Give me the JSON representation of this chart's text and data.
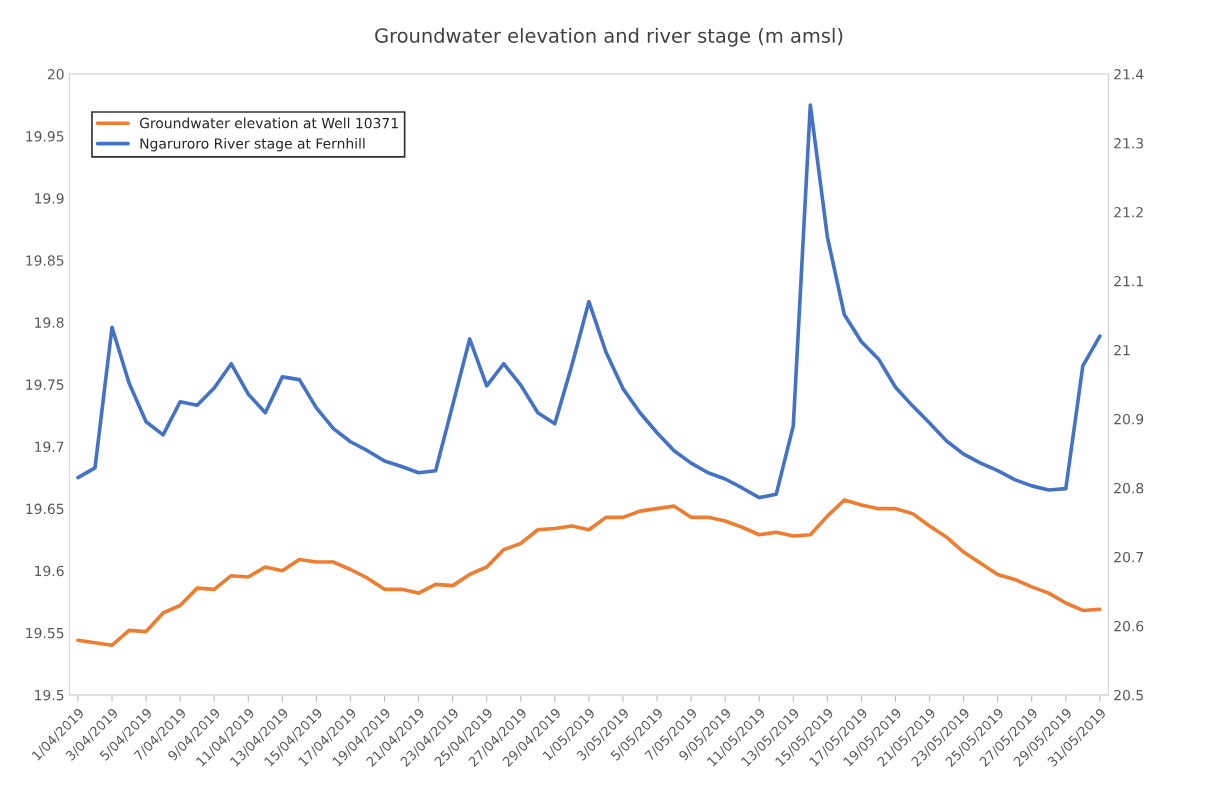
{
  "chart_data": {
    "type": "line",
    "title": "Groundwater elevation and river stage (m amsl)",
    "legend": "top left",
    "grid": false,
    "marker": "none",
    "line_style": "solid",
    "x": [
      "2019-04-01",
      "2019-04-02",
      "2019-04-03",
      "2019-04-04",
      "2019-04-05",
      "2019-04-06",
      "2019-04-07",
      "2019-04-08",
      "2019-04-09",
      "2019-04-10",
      "2019-04-11",
      "2019-04-12",
      "2019-04-13",
      "2019-04-14",
      "2019-04-15",
      "2019-04-16",
      "2019-04-17",
      "2019-04-18",
      "2019-04-19",
      "2019-04-20",
      "2019-04-21",
      "2019-04-22",
      "2019-04-23",
      "2019-04-24",
      "2019-04-25",
      "2019-04-26",
      "2019-04-27",
      "2019-04-28",
      "2019-04-29",
      "2019-04-30",
      "2019-05-01",
      "2019-05-02",
      "2019-05-03",
      "2019-05-04",
      "2019-05-05",
      "2019-05-06",
      "2019-05-07",
      "2019-05-08",
      "2019-05-09",
      "2019-05-10",
      "2019-05-11",
      "2019-05-12",
      "2019-05-13",
      "2019-05-14",
      "2019-05-15",
      "2019-05-16",
      "2019-05-17",
      "2019-05-18",
      "2019-05-19",
      "2019-05-20",
      "2019-05-21",
      "2019-05-22",
      "2019-05-23",
      "2019-05-24",
      "2019-05-25",
      "2019-05-26",
      "2019-05-27",
      "2019-05-28",
      "2019-05-29",
      "2019-05-30",
      "2019-05-31"
    ],
    "xlim": [
      "2019-03-31T12:00",
      "2019-05-31T12:00"
    ],
    "xticks": [
      {
        "value": "2019-04-01",
        "label": "1/04/2019"
      },
      {
        "value": "2019-04-03",
        "label": "3/04/2019"
      },
      {
        "value": "2019-04-05",
        "label": "5/04/2019"
      },
      {
        "value": "2019-04-07",
        "label": "7/04/2019"
      },
      {
        "value": "2019-04-09",
        "label": "9/04/2019"
      },
      {
        "value": "2019-04-11",
        "label": "11/04/2019"
      },
      {
        "value": "2019-04-13",
        "label": "13/04/2019"
      },
      {
        "value": "2019-04-15",
        "label": "15/04/2019"
      },
      {
        "value": "2019-04-17",
        "label": "17/04/2019"
      },
      {
        "value": "2019-04-19",
        "label": "19/04/2019"
      },
      {
        "value": "2019-04-21",
        "label": "21/04/2019"
      },
      {
        "value": "2019-04-23",
        "label": "23/04/2019"
      },
      {
        "value": "2019-04-25",
        "label": "25/04/2019"
      },
      {
        "value": "2019-04-27",
        "label": "27/04/2019"
      },
      {
        "value": "2019-04-29",
        "label": "29/04/2019"
      },
      {
        "value": "2019-05-01",
        "label": "1/05/2019"
      },
      {
        "value": "2019-05-03",
        "label": "3/05/2019"
      },
      {
        "value": "2019-05-05",
        "label": "5/05/2019"
      },
      {
        "value": "2019-05-07",
        "label": "7/05/2019"
      },
      {
        "value": "2019-05-09",
        "label": "9/05/2019"
      },
      {
        "value": "2019-05-11",
        "label": "11/05/2019"
      },
      {
        "value": "2019-05-13",
        "label": "13/05/2019"
      },
      {
        "value": "2019-05-15",
        "label": "15/05/2019"
      },
      {
        "value": "2019-05-17",
        "label": "17/05/2019"
      },
      {
        "value": "2019-05-19",
        "label": "19/05/2019"
      },
      {
        "value": "2019-05-21",
        "label": "21/05/2019"
      },
      {
        "value": "2019-05-23",
        "label": "23/05/2019"
      },
      {
        "value": "2019-05-25",
        "label": "25/05/2019"
      },
      {
        "value": "2019-05-27",
        "label": "27/05/2019"
      },
      {
        "value": "2019-05-29",
        "label": "29/05/2019"
      },
      {
        "value": "2019-05-31",
        "label": "31/05/2019"
      }
    ],
    "ylim": [
      19.5,
      20
    ],
    "yticks": [
      19.5,
      19.55,
      19.6,
      19.65,
      19.7,
      19.75,
      19.8,
      19.85,
      19.9,
      19.95,
      20
    ],
    "y2lim": [
      20.5,
      21.4
    ],
    "y2ticks": [
      20.5,
      20.6,
      20.7,
      20.8,
      20.9,
      21,
      21.1,
      21.2,
      21.3,
      21.4
    ],
    "series": [
      {
        "name": "Groundwater elevation at Well 10371",
        "color": "#ed7d31",
        "values": [
          19.544,
          19.542,
          19.54,
          19.552,
          19.551,
          19.566,
          19.572,
          19.586,
          19.585,
          19.596,
          19.595,
          19.603,
          19.6,
          19.609,
          19.607,
          19.607,
          19.601,
          19.594,
          19.585,
          19.585,
          19.582,
          19.589,
          19.588,
          19.597,
          19.603,
          19.617,
          19.622,
          19.633,
          19.634,
          19.636,
          19.633,
          19.643,
          19.643,
          19.648,
          19.65,
          19.652,
          19.643,
          19.643,
          19.64,
          19.635,
          19.629,
          19.631,
          19.628,
          19.629,
          19.644,
          19.657,
          19.653,
          19.65,
          19.65,
          19.646,
          19.636,
          19.627,
          19.615,
          19.606,
          19.597,
          19.593,
          19.587,
          19.582,
          19.574,
          19.568,
          19.569
        ]
      },
      {
        "name": "Ngaruroro River stage at Fernhill",
        "color": "#4472c4",
        "axis": "y2",
        "values": [
          20.815,
          20.829,
          21.033,
          20.952,
          20.896,
          20.877,
          20.925,
          20.92,
          20.945,
          20.98,
          20.936,
          20.909,
          20.961,
          20.957,
          20.916,
          20.886,
          20.867,
          20.854,
          20.839,
          20.831,
          20.822,
          20.825,
          20.92,
          21.016,
          20.948,
          20.98,
          20.949,
          20.909,
          20.893,
          20.978,
          21.07,
          20.997,
          20.944,
          20.909,
          20.88,
          20.854,
          20.836,
          20.822,
          20.813,
          20.8,
          20.786,
          20.791,
          20.89,
          21.355,
          21.164,
          21.051,
          21.012,
          20.987,
          20.946,
          20.919,
          20.894,
          20.868,
          20.849,
          20.836,
          20.825,
          20.812,
          20.803,
          20.797,
          20.799,
          20.977,
          21.02
        ]
      }
    ]
  }
}
